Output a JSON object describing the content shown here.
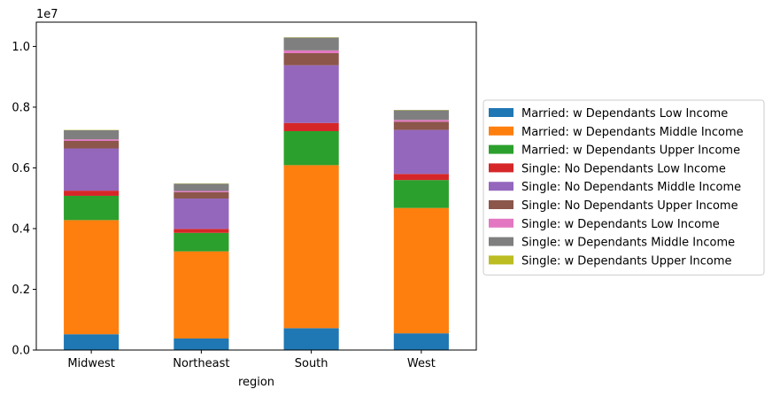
{
  "chart_data": {
    "type": "bar",
    "stacked": true,
    "categories": [
      "Midwest",
      "Northeast",
      "South",
      "West"
    ],
    "xlabel": "region",
    "ylabel": "",
    "y_offset_label": "1e7",
    "ylim": [
      0,
      10800000
    ],
    "y_ticks": [
      0,
      2000000,
      4000000,
      6000000,
      8000000,
      10000000
    ],
    "y_tick_labels": [
      "0.0",
      "0.2",
      "0.4",
      "0.6",
      "0.8",
      "1.0"
    ],
    "grid": false,
    "legend_position": "right",
    "series": [
      {
        "name": "Married: w Dependants Low Income",
        "color": "#1f77b4",
        "values": [
          520000,
          380000,
          720000,
          550000
        ]
      },
      {
        "name": "Married: w Dependants Middle Income",
        "color": "#ff7f0e",
        "values": [
          3760000,
          2870000,
          5370000,
          4130000
        ]
      },
      {
        "name": "Married: w Dependants Upper Income",
        "color": "#2ca02c",
        "values": [
          800000,
          610000,
          1120000,
          920000
        ]
      },
      {
        "name": "Single: No Dependants Low Income",
        "color": "#d62728",
        "values": [
          170000,
          130000,
          270000,
          200000
        ]
      },
      {
        "name": "Single: No Dependants Middle Income",
        "color": "#9467bd",
        "values": [
          1390000,
          1000000,
          1900000,
          1450000
        ]
      },
      {
        "name": "Single: No Dependants Upper Income",
        "color": "#8c564b",
        "values": [
          250000,
          210000,
          400000,
          270000
        ]
      },
      {
        "name": "Single: w Dependants Low Income",
        "color": "#e377c2",
        "values": [
          50000,
          40000,
          90000,
          60000
        ]
      },
      {
        "name": "Single: w Dependants Middle Income",
        "color": "#7f7f7f",
        "values": [
          300000,
          240000,
          420000,
          320000
        ]
      },
      {
        "name": "Single: w Dependants Upper Income",
        "color": "#bcbd22",
        "values": [
          10000,
          10000,
          10000,
          10000
        ]
      }
    ]
  }
}
